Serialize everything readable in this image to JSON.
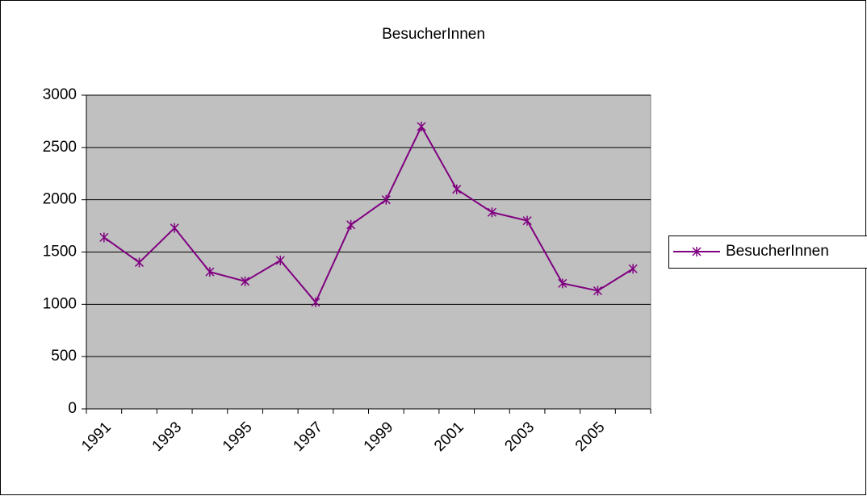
{
  "chart_data": {
    "type": "line",
    "title": "BesucherInnen",
    "categories": [
      "1991",
      null,
      "1993",
      null,
      "1995",
      null,
      "1997",
      null,
      "1999",
      null,
      "2001",
      null,
      "2003",
      null,
      "2005",
      null
    ],
    "series": [
      {
        "name": "BesucherInnen",
        "color": "#800080",
        "values": [
          1640,
          1400,
          1730,
          1310,
          1220,
          1420,
          1020,
          1760,
          2000,
          2700,
          2100,
          1880,
          1800,
          1200,
          1130,
          1340
        ]
      }
    ],
    "ylim": [
      0,
      3000
    ],
    "yticks": [
      0,
      500,
      1000,
      1500,
      2000,
      2500,
      3000
    ],
    "grid": true,
    "legend": "right"
  }
}
